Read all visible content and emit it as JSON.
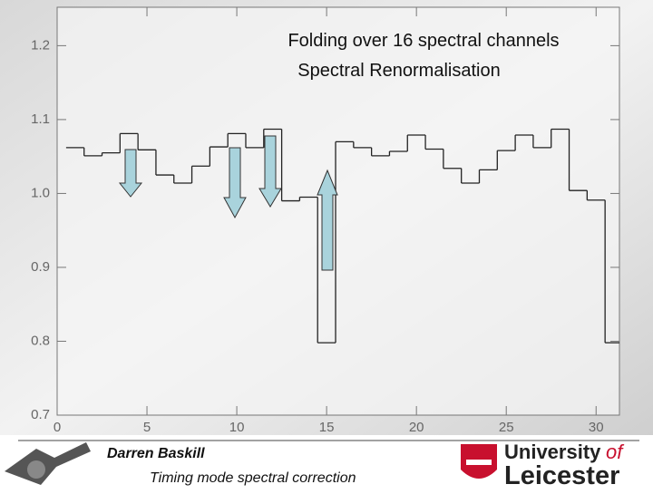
{
  "chart_data": {
    "type": "step",
    "title": "Folding over 16 spectral channels",
    "subtitle": "Spectral Renormalisation",
    "x": [
      1,
      2,
      3,
      4,
      5,
      6,
      7,
      8,
      9,
      10,
      11,
      12,
      13,
      14,
      15,
      16,
      17,
      18,
      19,
      20,
      21,
      22,
      23,
      24,
      25,
      26,
      27,
      28,
      29,
      30,
      31
    ],
    "values": [
      1.062,
      1.051,
      1.055,
      1.081,
      1.059,
      1.025,
      1.014,
      1.037,
      1.063,
      1.081,
      1.062,
      1.087,
      0.99,
      0.995,
      0.798,
      1.07,
      1.062,
      1.051,
      1.057,
      1.079,
      1.06,
      1.034,
      1.014,
      1.032,
      1.058,
      1.079,
      1.062,
      1.087,
      1.004,
      0.991,
      0.798
    ],
    "color": "#222222",
    "xlim": [
      0,
      31.3
    ],
    "ylim": [
      0.7,
      1.252
    ],
    "xticks": [
      0,
      5,
      10,
      15,
      20,
      25,
      30
    ],
    "yticks": [
      0.7,
      0.8,
      0.9,
      {
        "value": 1,
        "label": "1.0"
      },
      1.1,
      1.2
    ]
  },
  "footer": {
    "author": "Darren Baskill",
    "talk": "Timing mode spectral correction",
    "logo_line1": "University",
    "logo_of": "of",
    "logo_line2": "Leicester"
  }
}
